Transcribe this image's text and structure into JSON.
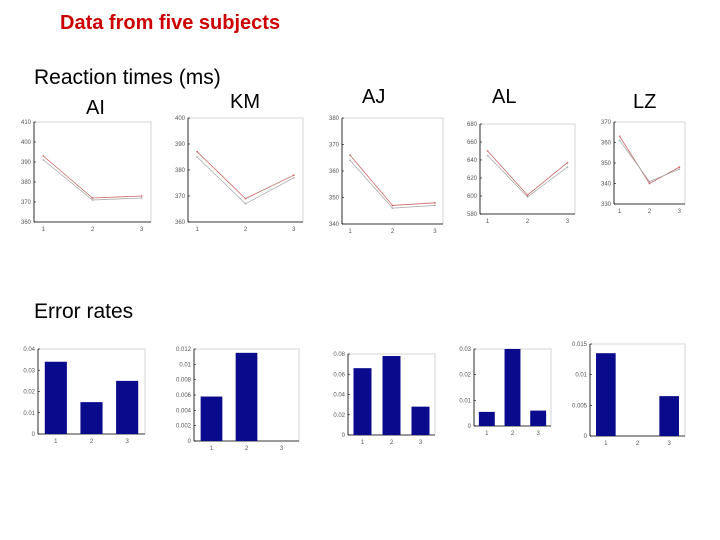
{
  "slide": {
    "title": "Data from five subjects",
    "rt_label": "Reaction times (ms)",
    "err_label": "Error rates"
  },
  "subjects": [
    "AI",
    "KM",
    "AJ",
    "AL",
    "LZ"
  ],
  "colors": {
    "bar": "#0a0a8c",
    "line_a": "#cc6666",
    "line_b": "#aaaaaa",
    "axis": "#000000",
    "frame": "#bbbbbb"
  },
  "chart_data": [
    {
      "type": "line",
      "subject": "AI",
      "metric": "reaction_time",
      "x": [
        1,
        2,
        3
      ],
      "xticks": [
        "1",
        "2",
        "3"
      ],
      "yticks": [
        "360",
        "370",
        "380",
        "390",
        "400",
        "410"
      ],
      "ylim": [
        360,
        410
      ],
      "series": [
        {
          "values": [
            393,
            372,
            373
          ]
        },
        {
          "values": [
            391,
            371,
            372
          ]
        }
      ]
    },
    {
      "type": "line",
      "subject": "KM",
      "metric": "reaction_time",
      "x": [
        1,
        2,
        3
      ],
      "xticks": [
        "1",
        "2",
        "3"
      ],
      "yticks": [
        "360",
        "370",
        "380",
        "390",
        "400"
      ],
      "ylim": [
        360,
        400
      ],
      "series": [
        {
          "values": [
            387,
            369,
            378
          ]
        },
        {
          "values": [
            385,
            367,
            377
          ]
        }
      ]
    },
    {
      "type": "line",
      "subject": "AJ",
      "metric": "reaction_time",
      "x": [
        1,
        2,
        3
      ],
      "xticks": [
        "1",
        "2",
        "3"
      ],
      "yticks": [
        "340",
        "350",
        "360",
        "370",
        "380"
      ],
      "ylim": [
        340,
        380
      ],
      "series": [
        {
          "values": [
            366,
            347,
            348
          ]
        },
        {
          "values": [
            364,
            346,
            347
          ]
        }
      ]
    },
    {
      "type": "line",
      "subject": "AL",
      "metric": "reaction_time",
      "x": [
        1,
        2,
        3
      ],
      "xticks": [
        "1",
        "2",
        "3"
      ],
      "yticks": [
        "580",
        "600",
        "620",
        "640",
        "660",
        "680"
      ],
      "ylim": [
        580,
        680
      ],
      "series": [
        {
          "values": [
            650,
            601,
            637
          ]
        },
        {
          "values": [
            645,
            599,
            632
          ]
        }
      ]
    },
    {
      "type": "line",
      "subject": "LZ",
      "metric": "reaction_time",
      "x": [
        1,
        2,
        3
      ],
      "xticks": [
        "1",
        "2",
        "3"
      ],
      "yticks": [
        "330",
        "340",
        "350",
        "360",
        "370"
      ],
      "ylim": [
        330,
        370
      ],
      "series": [
        {
          "values": [
            363,
            340,
            348
          ]
        },
        {
          "values": [
            361,
            341,
            347
          ]
        }
      ]
    },
    {
      "type": "bar",
      "subject": "AI",
      "metric": "error_rate",
      "categories": [
        "1",
        "2",
        "3"
      ],
      "yticks": [
        "0",
        "0.01",
        "0.02",
        "0.03",
        "0.04"
      ],
      "ylim": [
        0,
        0.04
      ],
      "values": [
        0.034,
        0.015,
        0.025
      ]
    },
    {
      "type": "bar",
      "subject": "KM",
      "metric": "error_rate",
      "categories": [
        "1",
        "2",
        "3"
      ],
      "yticks": [
        "0",
        "0.002",
        "0.004",
        "0.006",
        "0.008",
        "0.01",
        "0.012"
      ],
      "ylim": [
        0,
        0.012
      ],
      "values": [
        0.0058,
        0.0115,
        0
      ]
    },
    {
      "type": "bar",
      "subject": "AJ",
      "metric": "error_rate",
      "categories": [
        "1",
        "2",
        "3"
      ],
      "yticks": [
        "0",
        "0.02",
        "0.04",
        "0.06",
        "0.08"
      ],
      "ylim": [
        0,
        0.08
      ],
      "values": [
        0.066,
        0.078,
        0.028
      ]
    },
    {
      "type": "bar",
      "subject": "AL",
      "metric": "error_rate",
      "categories": [
        "1",
        "2",
        "3"
      ],
      "yticks": [
        "0",
        "0.01",
        "0.02",
        "0.03"
      ],
      "ylim": [
        0,
        0.03
      ],
      "values": [
        0.0055,
        0.03,
        0.006
      ]
    },
    {
      "type": "bar",
      "subject": "LZ",
      "metric": "error_rate",
      "categories": [
        "1",
        "2",
        "3"
      ],
      "yticks": [
        "0",
        "0.005",
        "0.01",
        "0.015"
      ],
      "ylim": [
        0,
        0.015
      ],
      "values": [
        0.0135,
        0,
        0.0065
      ]
    }
  ]
}
